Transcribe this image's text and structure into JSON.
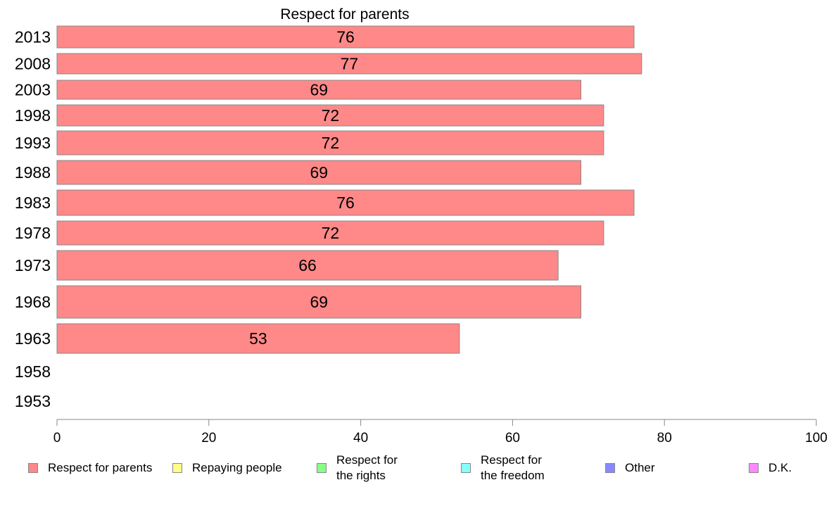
{
  "chart_data": {
    "type": "bar",
    "orientation": "horizontal",
    "title": "Respect for parents",
    "categories": [
      "2013",
      "2008",
      "2003",
      "1998",
      "1993",
      "1988",
      "1983",
      "1978",
      "1973",
      "1968",
      "1963",
      "1958",
      "1953"
    ],
    "series": [
      {
        "name": "Respect for parents",
        "color": "#ff8888",
        "values": [
          76,
          77,
          69,
          72,
          72,
          69,
          76,
          72,
          66,
          69,
          53,
          null,
          null
        ]
      }
    ],
    "data_labels": [
      "76",
      "77",
      "69",
      "72",
      "72",
      "69",
      "76",
      "72",
      "66",
      "69",
      "53",
      "",
      ""
    ],
    "xlim": [
      0,
      100
    ],
    "x_ticks": [
      "0",
      "20",
      "40",
      "60",
      "80",
      "100"
    ],
    "grid": false,
    "legend_position": "bottom"
  },
  "legend": [
    {
      "label": "Respect for parents",
      "color": "#ff8888"
    },
    {
      "label": "Repaying people",
      "color": "#ffff88"
    },
    {
      "label": "Respect for\nthe rights",
      "color": "#88ff88"
    },
    {
      "label": "Respect for\nthe freedom",
      "color": "#88ffff"
    },
    {
      "label": "Other",
      "color": "#8888ff"
    },
    {
      "label": "D.K.",
      "color": "#ff88ff"
    }
  ]
}
